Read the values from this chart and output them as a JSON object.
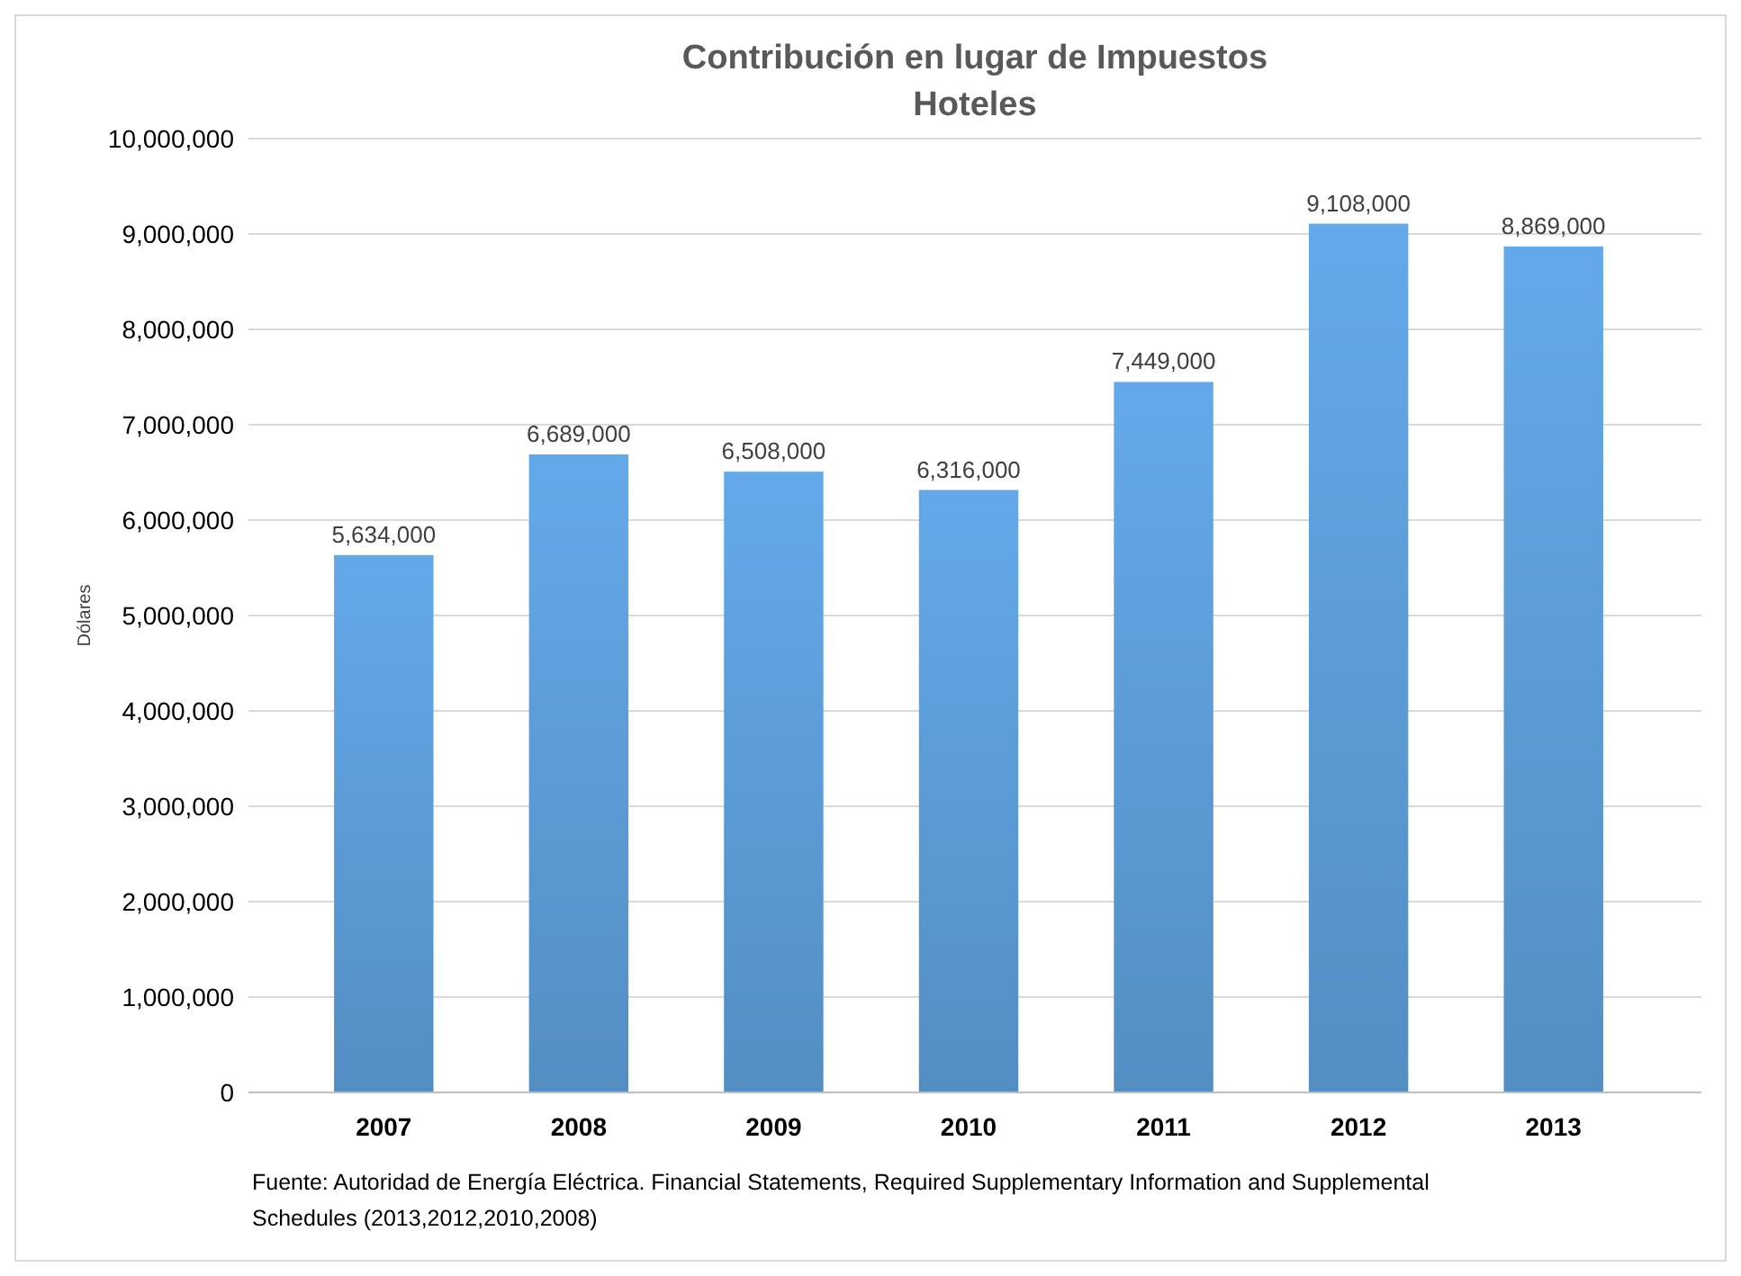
{
  "chart_data": {
    "type": "bar",
    "title": "Contribución en lugar de Impuestos",
    "subtitle": "Hoteles",
    "ylabel": "Dólares",
    "categories": [
      "2007",
      "2008",
      "2009",
      "2010",
      "2011",
      "2012",
      "2013"
    ],
    "values": [
      5634000,
      6689000,
      6508000,
      6316000,
      7449000,
      9108000,
      8869000
    ],
    "value_labels": [
      "5,634,000",
      "6,689,000",
      "6,508,000",
      "6,316,000",
      "7,449,000",
      "9,108,000",
      "8,869,000"
    ],
    "color": "#5b9bd5",
    "grid": "y",
    "ylim": [
      0,
      10000000
    ],
    "yticks": [
      0,
      {
        "value": 1000000,
        "label": "1,000,000"
      },
      {
        "value": 2000000,
        "label": "2,000,000"
      },
      {
        "value": 3000000,
        "label": "3,000,000"
      },
      {
        "value": 4000000,
        "label": "4,000,000"
      },
      {
        "value": 5000000,
        "label": "5,000,000"
      },
      {
        "value": 6000000,
        "label": "6,000,000"
      },
      {
        "value": 7000000,
        "label": "7,000,000"
      },
      {
        "value": 8000000,
        "label": "8,000,000"
      },
      {
        "value": 9000000,
        "label": "9,000,000"
      },
      {
        "value": 10000000,
        "label": "10,000,000"
      }
    ],
    "annotations": [
      "Fuente: Autoridad de Energía Eléctrica. Financial Statements, Required Supplementary Information and Supplemental Schedules (2013,2012,2010,2008)"
    ]
  }
}
